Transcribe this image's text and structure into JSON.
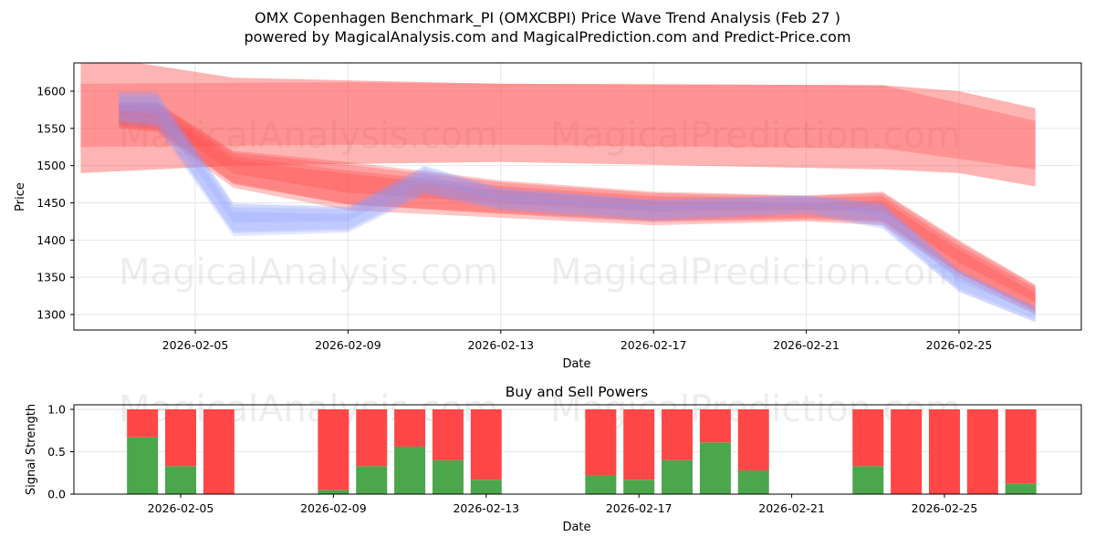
{
  "header": {
    "title": "OMX Copenhagen Benchmark_PI (OMXCBPI) Price Wave Trend Analysis (Feb 27 )",
    "subtitle": "powered by MagicalAnalysis.com and MagicalPrediction.com and Predict-Price.com"
  },
  "watermarks": [
    "MagicalAnalysis.com",
    "MagicalPrediction.com"
  ],
  "colors": {
    "sell_red": "#ff4747",
    "buy_green": "#4ca64c",
    "band_red": "#ff4d4d",
    "band_blue": "#8a9bff",
    "grid": "#e6e6e6"
  },
  "chart_data": [
    {
      "type": "area",
      "title": "",
      "xlabel": "Date",
      "ylabel": "Price",
      "ylim": [
        1279,
        1638
      ],
      "grid": true,
      "x_ticks": [
        "2026-02-05",
        "2026-02-09",
        "2026-02-13",
        "2026-02-17",
        "2026-02-21",
        "2026-02-25"
      ],
      "y_ticks": [
        1300,
        1350,
        1400,
        1450,
        1500,
        1550,
        1600
      ],
      "description": "Overlapping translucent red and blue price wave bands; price drifts from ~1570 (Feb 3) to ~1440 (Feb 6-22) and falls to ~1310 by Feb 27",
      "series": [
        {
          "name": "upper-wide-band",
          "color": "red",
          "x": [
            "2026-02-02",
            "2026-02-06",
            "2026-02-13",
            "2026-02-23",
            "2026-02-25",
            "2026-02-27"
          ],
          "upper": [
            1650,
            1618,
            1610,
            1608,
            1600,
            1577
          ],
          "lower": [
            1490,
            1500,
            1505,
            1495,
            1490,
            1472
          ]
        },
        {
          "name": "upper-core-band",
          "color": "red",
          "x": [
            "2026-02-02",
            "2026-02-09",
            "2026-02-13",
            "2026-02-23",
            "2026-02-27"
          ],
          "upper": [
            1610,
            1612,
            1610,
            1608,
            1560
          ],
          "lower": [
            1525,
            1528,
            1528,
            1523,
            1495
          ]
        },
        {
          "name": "lower-wave-band",
          "color": "red",
          "x": [
            "2026-02-03",
            "2026-02-04",
            "2026-02-06",
            "2026-02-09",
            "2026-02-13",
            "2026-02-17",
            "2026-02-21",
            "2026-02-23",
            "2026-02-25",
            "2026-02-27"
          ],
          "upper": [
            1585,
            1585,
            1520,
            1505,
            1480,
            1465,
            1460,
            1465,
            1400,
            1340
          ],
          "lower": [
            1550,
            1545,
            1470,
            1440,
            1430,
            1420,
            1425,
            1420,
            1350,
            1300
          ]
        },
        {
          "name": "blue-wave-band",
          "color": "blue",
          "x": [
            "2026-02-03",
            "2026-02-04",
            "2026-02-06",
            "2026-02-09",
            "2026-02-11",
            "2026-02-13",
            "2026-02-17",
            "2026-02-21",
            "2026-02-23",
            "2026-02-25",
            "2026-02-27"
          ],
          "upper": [
            1600,
            1600,
            1450,
            1445,
            1500,
            1470,
            1455,
            1460,
            1450,
            1360,
            1310
          ],
          "lower": [
            1555,
            1550,
            1405,
            1410,
            1460,
            1440,
            1425,
            1435,
            1415,
            1330,
            1290
          ]
        }
      ]
    },
    {
      "type": "bar",
      "title": "Buy and Sell Powers",
      "xlabel": "Date",
      "ylabel": "Signal Strength",
      "ylim": [
        0,
        1.0
      ],
      "grid": true,
      "x_ticks": [
        "2026-02-05",
        "2026-02-09",
        "2026-02-13",
        "2026-02-17",
        "2026-02-21",
        "2026-02-25"
      ],
      "y_ticks": [
        "0.0",
        "0.5",
        "1.0"
      ],
      "categories": [
        "2026-02-04",
        "2026-02-05",
        "2026-02-06",
        "2026-02-09",
        "2026-02-10",
        "2026-02-11",
        "2026-02-12",
        "2026-02-13",
        "2026-02-16",
        "2026-02-17",
        "2026-02-18",
        "2026-02-19",
        "2026-02-20",
        "2026-02-23",
        "2026-02-24",
        "2026-02-25",
        "2026-02-26",
        "2026-02-27"
      ],
      "series": [
        {
          "name": "Buy",
          "color": "#4ca64c",
          "values": [
            0.67,
            0.33,
            0.0,
            0.05,
            0.33,
            0.56,
            0.4,
            0.17,
            0.22,
            0.17,
            0.4,
            0.61,
            0.28,
            0.33,
            0.0,
            0.0,
            0.0,
            0.12
          ]
        },
        {
          "name": "Sell",
          "color": "#ff4747",
          "values": [
            0.33,
            0.67,
            1.0,
            0.95,
            0.67,
            0.44,
            0.6,
            0.83,
            0.78,
            0.83,
            0.6,
            0.39,
            0.72,
            0.67,
            1.0,
            1.0,
            1.0,
            0.88
          ]
        }
      ]
    }
  ]
}
